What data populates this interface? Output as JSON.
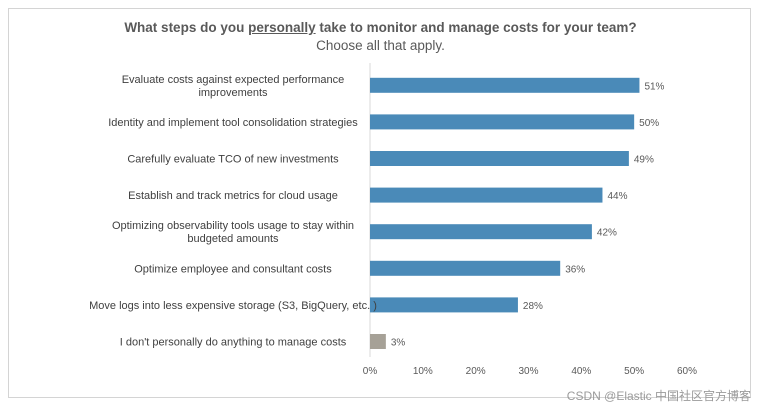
{
  "chart_data": {
    "type": "bar",
    "orientation": "horizontal",
    "title_pre": "What steps do you ",
    "title_em": "personally",
    "title_post": " take to monitor and manage costs for your team?",
    "subtitle": "Choose all that apply.",
    "categories": [
      [
        "Evaluate costs against expected performance",
        "improvements"
      ],
      [
        "Identity and implement tool consolidation strategies"
      ],
      [
        "Carefully evaluate TCO of new investments"
      ],
      [
        "Establish and track metrics for cloud usage"
      ],
      [
        "Optimizing observability tools usage to stay within",
        "budgeted amounts"
      ],
      [
        "Optimize employee and consultant costs"
      ],
      [
        "Move logs into less expensive storage (S3, BigQuery, etc. )"
      ],
      [
        "I don't personally do anything to manage costs"
      ]
    ],
    "values": [
      51,
      50,
      49,
      44,
      42,
      36,
      28,
      3
    ],
    "value_labels": [
      "51%",
      "50%",
      "49%",
      "44%",
      "42%",
      "36%",
      "28%",
      "3%"
    ],
    "bar_colors": [
      "#4a8ab8",
      "#4a8ab8",
      "#4a8ab8",
      "#4a8ab8",
      "#4a8ab8",
      "#4a8ab8",
      "#4a8ab8",
      "#a6a197"
    ],
    "xlim": [
      0,
      60
    ],
    "xticks": [
      "0%",
      "10%",
      "20%",
      "30%",
      "40%",
      "50%",
      "60%"
    ],
    "xlabel": "",
    "ylabel": "",
    "grid": false
  },
  "watermark": "CSDN @Elastic 中国社区官方博客"
}
